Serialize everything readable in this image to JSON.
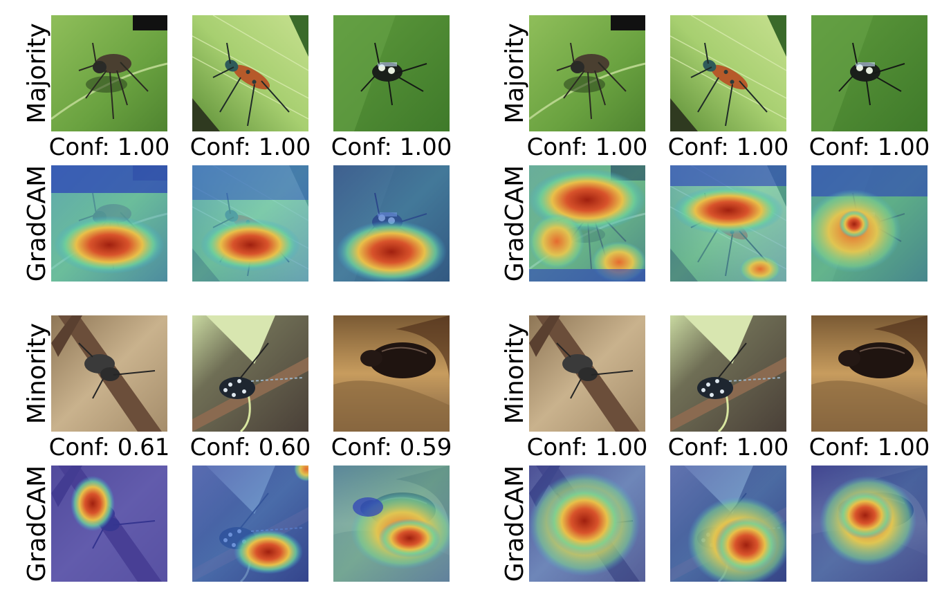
{
  "panels": [
    {
      "id": "left",
      "rows": {
        "top_image_label": "Majority",
        "top_cam_label": "GradCAM",
        "bottom_image_label": "Minority",
        "bottom_cam_label": "GradCAM"
      },
      "majority_confidences": [
        "Conf: 1.00",
        "Conf: 1.00",
        "Conf: 1.00"
      ],
      "minority_confidences": [
        "Conf: 0.61",
        "Conf: 0.60",
        "Conf: 0.59"
      ]
    },
    {
      "id": "right",
      "rows": {
        "top_image_label": "Majority",
        "top_cam_label": "GradCAM",
        "bottom_image_label": "Minority",
        "bottom_cam_label": "GradCAM"
      },
      "majority_confidences": [
        "Conf: 1.00",
        "Conf: 1.00",
        "Conf: 1.00"
      ],
      "minority_confidences": [
        "Conf: 1.00",
        "Conf: 1.00",
        "Conf: 1.00"
      ]
    }
  ],
  "colors": {
    "leaf_green": "#7fae4a",
    "bark_brown": "#8a6a4a",
    "cam_red": "#c0392b",
    "cam_blue": "#2c3dbb"
  }
}
